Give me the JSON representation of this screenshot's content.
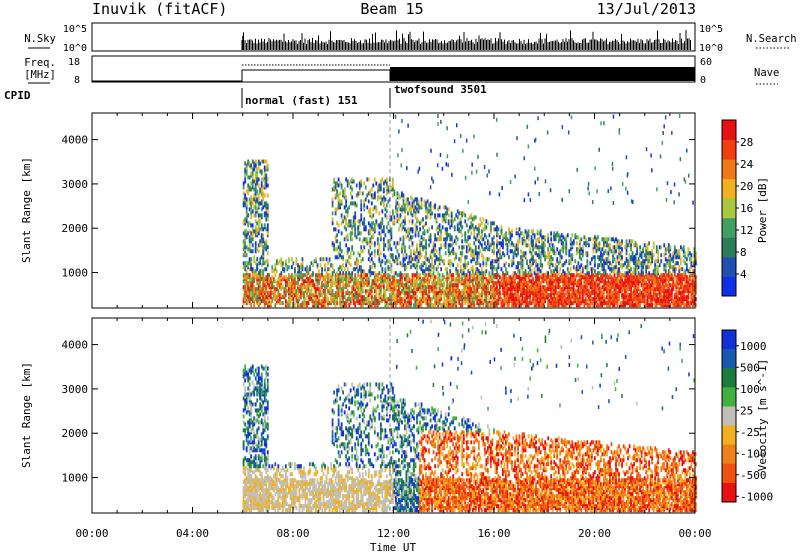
{
  "header": {
    "station": "Inuvik (fitACF)",
    "beam": "Beam 15",
    "date": "13/Jul/2013"
  },
  "strip_labels": {
    "nsky": "N.Sky",
    "nsky_tick_top": "10^5",
    "nsky_tick_bottom": "10^0",
    "nsearch": "N.Search",
    "nsearch_tick_top": "10^5",
    "nsearch_tick_bottom": "10^0",
    "freq_line1": "Freq.",
    "freq_line2": "[MHz]",
    "freq_tick_top": "18",
    "freq_tick_bottom": "8",
    "nave": "Nave",
    "nave_tick_top": "60",
    "nave_tick_bottom": "0",
    "cpid": "CPID",
    "cpid_mode_1": "normal (fast) 151",
    "cpid_mode_2": "twofsound 3501"
  },
  "colors": {
    "power_scale": [
      "#1030e8",
      "#2050b0",
      "#2e7d5a",
      "#3fa060",
      "#a8c840",
      "#f0b020",
      "#f07818",
      "#f04010",
      "#e81010"
    ],
    "velocity_scale": [
      "#1030d8",
      "#1858b0",
      "#1e7a3a",
      "#40b040",
      "#c0c0b8",
      "#f0b020",
      "#f08018",
      "#f05010",
      "#e81010"
    ]
  },
  "chart_data": [
    {
      "type": "heatmap",
      "name": "power",
      "ylabel": "Slant Range [km]",
      "yticks": [
        "1000",
        "2000",
        "3000",
        "4000"
      ],
      "ylim": [
        200,
        4600
      ],
      "xlim": [
        0,
        24
      ],
      "colorbar_label": "Power [dB]",
      "colorbar_ticks": [
        "4",
        "8",
        "12",
        "16",
        "20",
        "24",
        "28"
      ],
      "colorbar_range": [
        0,
        32
      ]
    },
    {
      "type": "heatmap",
      "name": "velocity",
      "ylabel": "Slant Range [km]",
      "yticks": [
        "1000",
        "2000",
        "3000",
        "4000"
      ],
      "ylim": [
        200,
        4600
      ],
      "xlim": [
        0,
        24
      ],
      "colorbar_label": "Velocity [m s^-1]",
      "colorbar_ticks": [
        "1000",
        "500",
        "100",
        "25",
        "-25",
        "-100",
        "-500",
        "-1000"
      ]
    }
  ],
  "time_axis": {
    "xlabel": "Time UT",
    "ticks": [
      "00:00",
      "04:00",
      "08:00",
      "12:00",
      "16:00",
      "20:00",
      "00:00"
    ]
  }
}
